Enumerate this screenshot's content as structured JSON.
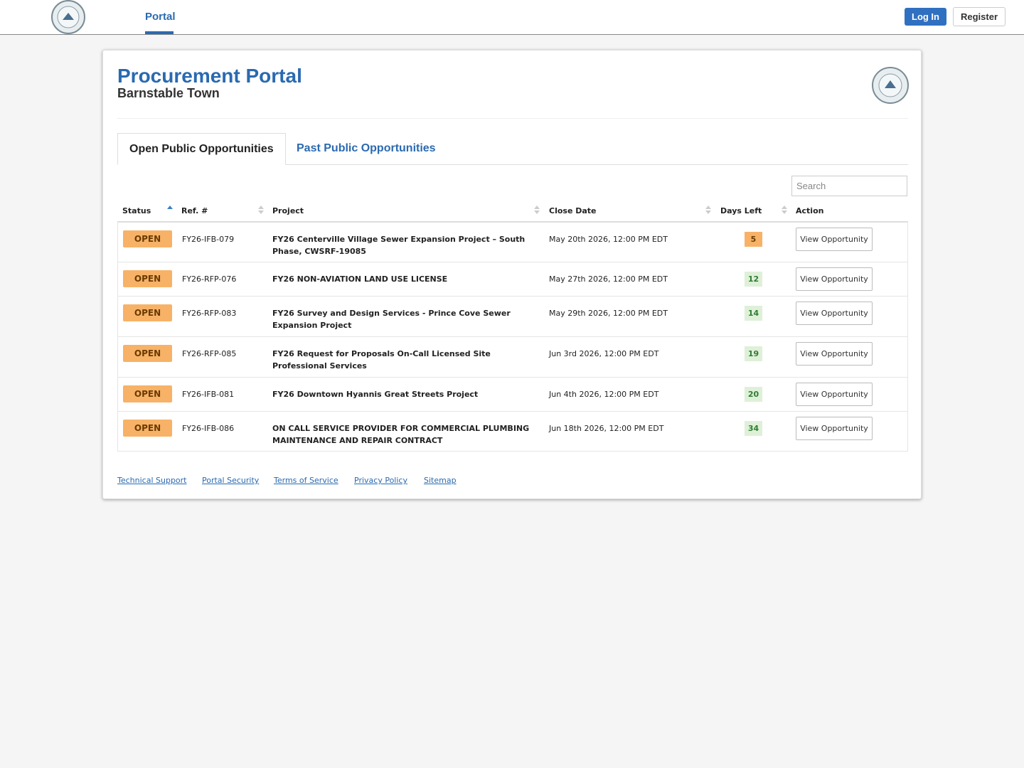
{
  "nav": {
    "portal": "Portal",
    "login": "Log In",
    "register": "Register"
  },
  "header": {
    "title": "Procurement Portal",
    "subtitle": "Barnstable Town"
  },
  "tabs": [
    "Open Public Opportunities",
    "Past Public Opportunities"
  ],
  "search": {
    "placeholder": "Search"
  },
  "table": {
    "columns": [
      "Status",
      "Ref. #",
      "Project",
      "Close Date",
      "Days Left",
      "Action"
    ],
    "rows": [
      [
        "OPEN",
        "FY26-IFB-079",
        "FY26 Centerville Village Sewer Expansion Project – South Phase, CWSRF-19085",
        "May 20th 2026, 12:00 PM EDT",
        5,
        "View Opportunity"
      ],
      [
        "OPEN",
        "FY26-RFP-076",
        "FY26 NON-AVIATION LAND USE LICENSE",
        "May 27th 2026, 12:00 PM EDT",
        12,
        "View Opportunity"
      ],
      [
        "OPEN",
        "FY26-RFP-083",
        "FY26 Survey and Design Services - Prince Cove Sewer Expansion Project",
        "May 29th 2026, 12:00 PM EDT",
        14,
        "View Opportunity"
      ],
      [
        "OPEN",
        "FY26-RFP-085",
        "FY26 Request for Proposals On-Call Licensed Site Professional Services",
        "Jun 3rd 2026, 12:00 PM EDT",
        19,
        "View Opportunity"
      ],
      [
        "OPEN",
        "FY26-IFB-081",
        "FY26 Downtown Hyannis Great Streets Project",
        "Jun 4th 2026, 12:00 PM EDT",
        20,
        "View Opportunity"
      ],
      [
        "OPEN",
        "FY26-IFB-086",
        "ON CALL SERVICE PROVIDER FOR COMMERCIAL PLUMBING MAINTENANCE AND REPAIR CONTRACT",
        "Jun 18th 2026, 12:00 PM EDT",
        34,
        "View Opportunity"
      ]
    ]
  },
  "footer_links": [
    "Technical Support",
    "Portal Security",
    "Terms of Service",
    "Privacy Policy",
    "Sitemap"
  ]
}
